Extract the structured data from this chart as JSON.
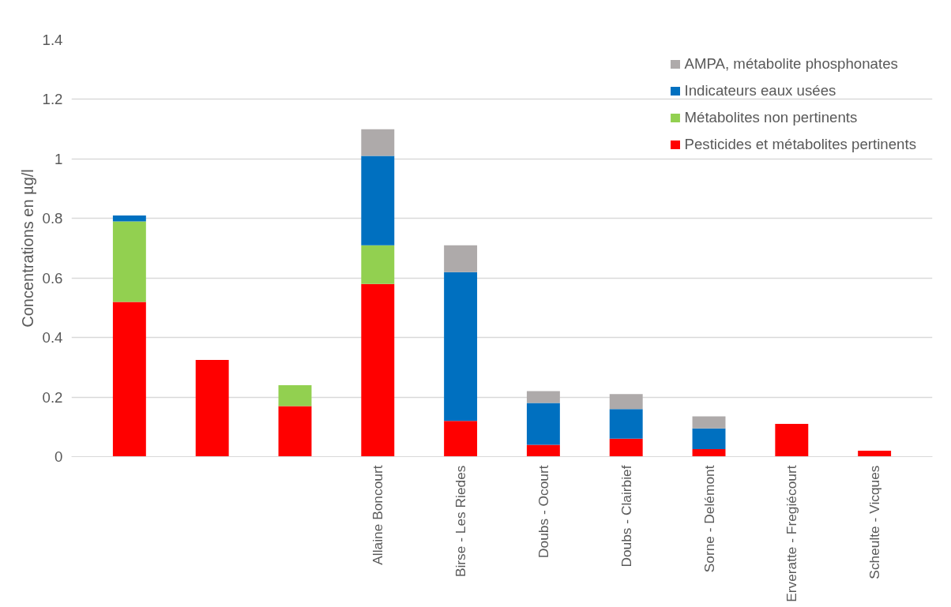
{
  "chart_data": {
    "type": "bar",
    "stacked": true,
    "ylabel": "Concentrations en µg/l",
    "categories": [
      null,
      null,
      null,
      "Allaine Boncourt",
      "Birse - Les Riedes",
      "Doubs - Ocourt",
      "Doubs - Clairbief",
      "Sorne - Delémont",
      "Erveratte - Fregiécourt",
      "Scheulte - Vicques"
    ],
    "series": [
      {
        "name": "Pesticides et métabolites pertinents",
        "color": "#ff0000",
        "values": [
          0.52,
          0.325,
          0.17,
          0.58,
          0.12,
          0.04,
          0.06,
          0.025,
          0.11,
          0.02
        ]
      },
      {
        "name": "Métabolites non pertinents",
        "color": "#92d050",
        "values": [
          0.27,
          null,
          0.07,
          0.13,
          null,
          null,
          null,
          null,
          null,
          null
        ]
      },
      {
        "name": "Indicateurs eaux usées",
        "color": "#0070c0",
        "values": [
          0.02,
          null,
          null,
          0.3,
          0.5,
          0.14,
          0.1,
          0.07,
          null,
          null
        ]
      },
      {
        "name": "AMPA, métabolite phosphonates",
        "color": "#aeaaaa",
        "values": [
          null,
          null,
          null,
          0.09,
          0.09,
          0.04,
          0.05,
          0.04,
          null,
          null
        ]
      }
    ],
    "ylim": [
      0,
      1.4
    ],
    "yticks": [
      0,
      0.2,
      0.4,
      0.6,
      0.8,
      1,
      1.2,
      1.4
    ],
    "grid": "y",
    "legend": "top right"
  }
}
